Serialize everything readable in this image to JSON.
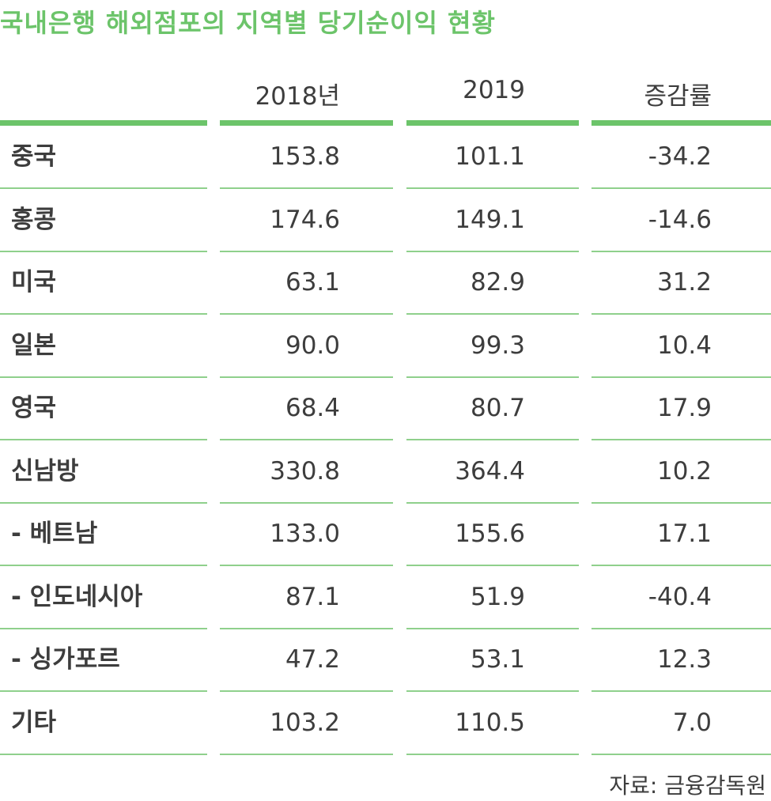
{
  "title": "국내은행 해외점포의 지역별 당기순이익 현황",
  "source": "자료: 금융감독원",
  "chart_data": {
    "type": "table",
    "title": "국내은행 해외점포의 지역별 당기순이익 현황",
    "columns": [
      "2018년",
      "2019",
      "증감률"
    ],
    "rows": [
      {
        "label": "중국",
        "values": [
          "153.8",
          "101.1",
          "-34.2"
        ]
      },
      {
        "label": "홍콩",
        "values": [
          "174.6",
          "149.1",
          "-14.6"
        ]
      },
      {
        "label": "미국",
        "values": [
          "63.1",
          "82.9",
          "31.2"
        ]
      },
      {
        "label": "일본",
        "values": [
          "90.0",
          "99.3",
          "10.4"
        ]
      },
      {
        "label": "영국",
        "values": [
          "68.4",
          "80.7",
          "17.9"
        ]
      },
      {
        "label": "신남방",
        "values": [
          "330.8",
          "364.4",
          "10.2"
        ]
      },
      {
        "label": "- 베트남",
        "values": [
          "133.0",
          "155.6",
          "17.1"
        ]
      },
      {
        "label": "- 인도네시아",
        "values": [
          "87.1",
          "51.9",
          "-40.4"
        ]
      },
      {
        "label": "- 싱가포르",
        "values": [
          "47.2",
          "53.1",
          "12.3"
        ]
      },
      {
        "label": "기타",
        "values": [
          "103.2",
          "110.5",
          "7.0"
        ]
      }
    ]
  }
}
